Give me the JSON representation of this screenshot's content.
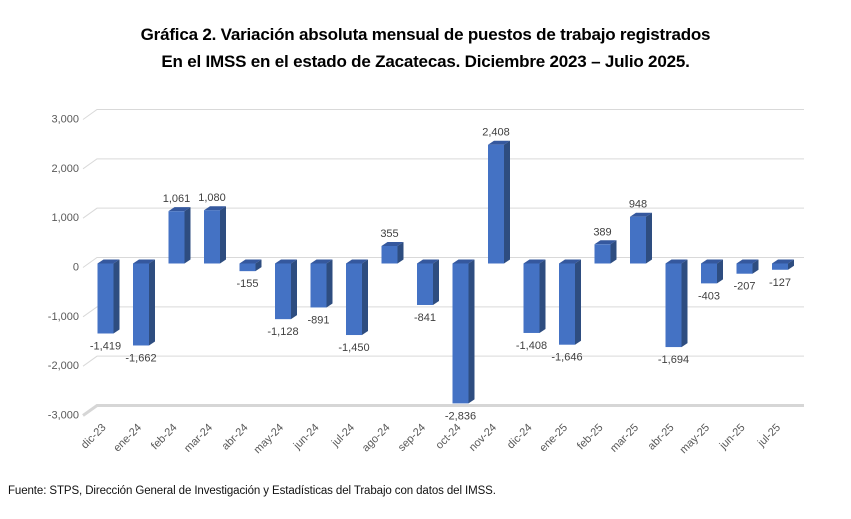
{
  "title": {
    "line1": "Gráfica 2. Variación absoluta mensual de puestos de trabajo registrados",
    "line2": "En el IMSS en el estado de Zacatecas. Diciembre 2023 – Julio 2025."
  },
  "footer": "Fuente: STPS, Dirección General de Investigación y Estadísticas del Trabajo con datos del IMSS.",
  "chart_data": {
    "type": "bar",
    "style": "3d-column",
    "title": "Gráfica 2. Variación absoluta mensual de puestos de trabajo registrados En el IMSS en el estado de Zacatecas. Diciembre 2023 – Julio 2025.",
    "categories": [
      "dic-23",
      "ene-24",
      "feb-24",
      "mar-24",
      "abr-24",
      "may-24",
      "jun-24",
      "jul-24",
      "ago-24",
      "sep-24",
      "oct-24",
      "nov-24",
      "dic-24",
      "ene-25",
      "feb-25",
      "mar-25",
      "abr-25",
      "may-25",
      "jun-25",
      "jul-25"
    ],
    "values": [
      -1419,
      -1662,
      1061,
      1080,
      -155,
      -1128,
      -891,
      -1450,
      355,
      -841,
      -2836,
      2408,
      -1408,
      -1646,
      389,
      948,
      -1694,
      -403,
      -207,
      -127
    ],
    "value_labels": [
      "-1,419",
      "-1,662",
      "1,061",
      "1,080",
      "-155",
      "-1,128",
      "-891",
      "-1,450",
      "355",
      "-841",
      "-2,836",
      "2,408",
      "-1,408",
      "-1,646",
      "389",
      "948",
      "-1,694",
      "-403",
      "-207",
      "-127"
    ],
    "xlabel": "",
    "ylabel": "",
    "ylim": [
      -3000,
      3000
    ],
    "y_ticks": [
      3000,
      2000,
      1000,
      0,
      -1000,
      -2000,
      -3000
    ],
    "y_tick_labels": [
      "3,000",
      "2,000",
      "1,000",
      "0",
      "-1,000",
      "-2,000",
      "-3,000"
    ],
    "grid": true,
    "legend": false,
    "colors": {
      "bar_front": "#4472C4",
      "bar_side": "#2E4D80",
      "bar_top": "#35589E",
      "gridline": "#D9D9D9",
      "floor": "#D6D6D6",
      "axis_text": "#595959",
      "data_label": "#404040"
    }
  }
}
